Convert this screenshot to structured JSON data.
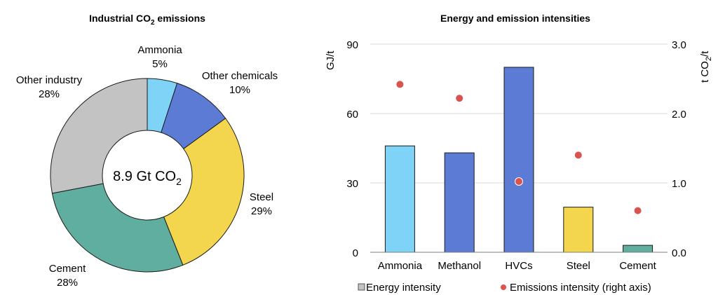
{
  "chart_data": [
    {
      "type": "pie",
      "title": "Industrial CO",
      "title_sub": "2",
      "title_rest": " emissions",
      "center_label": "8.9 Gt CO",
      "center_label_sub": "2",
      "slices": [
        {
          "name": "Ammonia",
          "value": 5,
          "label": "5%",
          "color": "#7fd3f7"
        },
        {
          "name": "Other chemicals",
          "value": 10,
          "label": "10%",
          "color": "#5b7bd5"
        },
        {
          "name": "Steel",
          "value": 29,
          "label": "29%",
          "color": "#f3d54e"
        },
        {
          "name": "Cement",
          "value": 28,
          "label": "28%",
          "color": "#5fae9f"
        },
        {
          "name": "Other industry",
          "value": 28,
          "label": "28%",
          "color": "#c3c3c3"
        }
      ]
    },
    {
      "type": "bar",
      "title": "Energy and emission intensities",
      "categories": [
        "Ammonia",
        "Methanol",
        "HVCs",
        "Steel",
        "Cement"
      ],
      "series": [
        {
          "name": "Energy intensity",
          "axis": "left",
          "values": [
            46,
            43,
            80,
            19.5,
            3
          ],
          "colors": [
            "#7fd3f7",
            "#5b7bd5",
            "#5b7bd5",
            "#f3d54e",
            "#5fae9f"
          ]
        },
        {
          "name": "Emissions intensity (right axis)",
          "axis": "right",
          "mark": "point",
          "values": [
            2.42,
            2.22,
            1.02,
            1.4,
            0.6
          ],
          "color": "#d9534f"
        }
      ],
      "ylabel": "GJ/t",
      "y2label": "t CO",
      "y2label_sub": "2",
      "y2label_rest": "/t",
      "ylim": [
        0,
        90
      ],
      "yticks": [
        0,
        30,
        60,
        90
      ],
      "ytick_labels": [
        "0",
        "30",
        "60",
        "90"
      ],
      "y2lim": [
        0,
        3.0
      ],
      "y2ticks": [
        0,
        1,
        2,
        3
      ],
      "y2tick_labels": [
        "0.0",
        "1.0",
        "2.0",
        "3.0"
      ],
      "legend": [
        {
          "label": "Energy intensity",
          "marker": "square",
          "color": "#c3c3c3"
        },
        {
          "label": "Emissions intensity (right axis)",
          "marker": "circle",
          "color": "#d9534f"
        }
      ],
      "legend_position": "bottom",
      "grid": true
    }
  ]
}
